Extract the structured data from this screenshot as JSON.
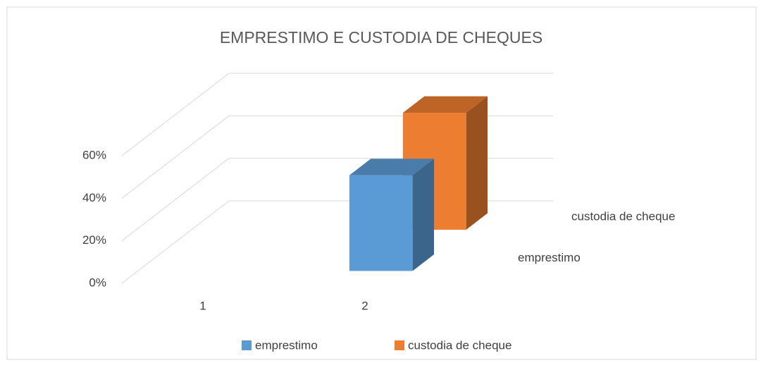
{
  "chart_data": {
    "type": "bar3d",
    "title": "EMPRESTIMO E CUSTODIA DE CHEQUES",
    "categories": [
      "1",
      "2"
    ],
    "series": [
      {
        "name": "emprestimo",
        "color": "#5b9bd5",
        "values": [
          null,
          45
        ]
      },
      {
        "name": "custodia de cheque",
        "color": "#ed7d31",
        "values": [
          null,
          55
        ]
      }
    ],
    "ylim": [
      0,
      60
    ],
    "yticks": [
      {
        "value": 0,
        "label": "0%"
      },
      {
        "value": 20,
        "label": "20%"
      },
      {
        "value": 40,
        "label": "40%"
      },
      {
        "value": 60,
        "label": "60%"
      }
    ],
    "grid": true,
    "legend": "bottom"
  }
}
